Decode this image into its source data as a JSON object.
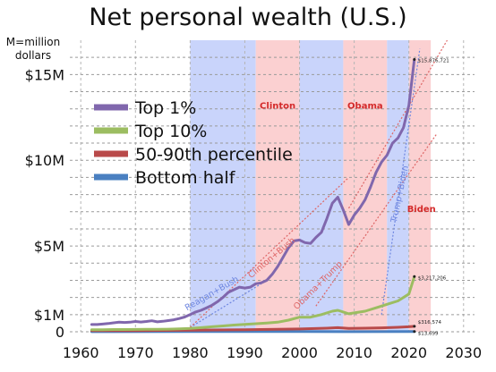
{
  "chart_data": {
    "type": "line",
    "title": "Net personal wealth (U.S.)",
    "units_note": "M=million dollars",
    "xlabel": "",
    "ylabel": "",
    "xlim": [
      1958,
      2032
    ],
    "ylim": [
      0,
      17000000
    ],
    "x_ticks": [
      1960,
      1970,
      1980,
      1990,
      2000,
      2010,
      2020,
      2030
    ],
    "y_ticks": [
      {
        "value": 0,
        "label": "0"
      },
      {
        "value": 1000000,
        "label": "$1M"
      },
      {
        "value": 5000000,
        "label": "$5M"
      },
      {
        "value": 10000000,
        "label": "$10M"
      },
      {
        "value": 15000000,
        "label": "$15M"
      }
    ],
    "grid": "dashed",
    "legend_position": "upper-left",
    "presidency_bands": [
      {
        "party": "R",
        "start": 1980,
        "end": 1992,
        "color": "#c9d4fb",
        "label": ""
      },
      {
        "party": "D",
        "start": 1992,
        "end": 2000,
        "color": "#fbd0d1",
        "label": "Clinton"
      },
      {
        "party": "R",
        "start": 2000,
        "end": 2008,
        "color": "#c9d4fb",
        "label": ""
      },
      {
        "party": "D",
        "start": 2008,
        "end": 2016,
        "color": "#fbd0d1",
        "label": "Obama"
      },
      {
        "party": "R",
        "start": 2016,
        "end": 2020,
        "color": "#c9d4fb",
        "label": ""
      },
      {
        "party": "D",
        "start": 2020,
        "end": 2024,
        "color": "#fbd0d1",
        "label": "Biden"
      }
    ],
    "series": [
      {
        "name": "Top 1%",
        "color": "#8067ad",
        "end_label": "$15,876,721",
        "x": [
          1962,
          1963,
          1964,
          1965,
          1966,
          1967,
          1968,
          1969,
          1970,
          1971,
          1972,
          1973,
          1974,
          1975,
          1976,
          1977,
          1978,
          1979,
          1980,
          1981,
          1982,
          1983,
          1984,
          1985,
          1986,
          1987,
          1988,
          1989,
          1990,
          1991,
          1992,
          1993,
          1994,
          1995,
          1996,
          1997,
          1998,
          1999,
          2000,
          2001,
          2002,
          2003,
          2004,
          2005,
          2006,
          2007,
          2008,
          2009,
          2010,
          2011,
          2012,
          2013,
          2014,
          2015,
          2016,
          2017,
          2018,
          2019,
          2020,
          2021
        ],
        "values": [
          420000,
          420000,
          450000,
          480000,
          520000,
          560000,
          540000,
          560000,
          600000,
          570000,
          600000,
          640000,
          580000,
          610000,
          650000,
          700000,
          770000,
          860000,
          1000000,
          1150000,
          1250000,
          1400000,
          1550000,
          1750000,
          2000000,
          2300000,
          2450000,
          2600000,
          2550000,
          2600000,
          2800000,
          2850000,
          3000000,
          3350000,
          3800000,
          4350000,
          4900000,
          5300000,
          5350000,
          5200000,
          5150000,
          5500000,
          5800000,
          6600000,
          7500000,
          7850000,
          7100000,
          6250000,
          6800000,
          7200000,
          7700000,
          8450000,
          9300000,
          9900000,
          10300000,
          11000000,
          11300000,
          11900000,
          13200000,
          15880000
        ]
      },
      {
        "name": "Top 10%",
        "color": "#9cbd61",
        "end_label": "$3,217,206",
        "x": [
          1962,
          1964,
          1966,
          1968,
          1970,
          1972,
          1974,
          1976,
          1978,
          1980,
          1982,
          1984,
          1986,
          1988,
          1990,
          1992,
          1994,
          1996,
          1998,
          2000,
          2002,
          2004,
          2006,
          2007,
          2008,
          2009,
          2010,
          2012,
          2014,
          2016,
          2018,
          2020,
          2021
        ],
        "values": [
          120000,
          120000,
          130000,
          130000,
          135000,
          140000,
          140000,
          150000,
          170000,
          200000,
          240000,
          290000,
          340000,
          390000,
          430000,
          470000,
          510000,
          560000,
          680000,
          850000,
          850000,
          1000000,
          1200000,
          1250000,
          1150000,
          1050000,
          1100000,
          1200000,
          1400000,
          1600000,
          1800000,
          2200000,
          3220000
        ]
      },
      {
        "name": "50-90th percentile",
        "color": "#b94a4a",
        "end_label": "$316,574",
        "x": [
          1962,
          1970,
          1980,
          1990,
          2000,
          2005,
          2007,
          2009,
          2012,
          2015,
          2018,
          2020,
          2021
        ],
        "values": [
          60000,
          70000,
          90000,
          120000,
          160000,
          210000,
          240000,
          200000,
          210000,
          230000,
          260000,
          290000,
          317000
        ]
      },
      {
        "name": "Bottom half",
        "color": "#4a80c1",
        "end_label": "$13,699",
        "x": [
          1962,
          1980,
          2000,
          2010,
          2021
        ],
        "values": [
          5000,
          8000,
          12000,
          5000,
          13700
        ]
      }
    ],
    "trendlines": [
      {
        "label": "Reagan+Bush",
        "color": "#6e86e0",
        "points": [
          [
            1980,
            250000
          ],
          [
            1993,
            2800000
          ]
        ]
      },
      {
        "label": "Clinton+Bush",
        "color": "#de6666",
        "points": [
          [
            1980,
            250000
          ],
          [
            2009,
            9000000
          ]
        ]
      },
      {
        "label": "Obama+Trump",
        "color": "#de6666",
        "points": [
          [
            2003,
            1500000
          ],
          [
            2025,
            11500000
          ]
        ]
      },
      {
        "label": "Trump+Biden",
        "color": "#6e86e0",
        "points": [
          [
            2015,
            1000000
          ],
          [
            2022,
            16500000
          ]
        ]
      },
      {
        "label": "",
        "color": "#de6666",
        "points": [
          [
            2009,
            7200000
          ],
          [
            2027,
            17000000
          ]
        ]
      }
    ],
    "annotations": [
      {
        "text": "Clinton",
        "color": "#d42a2a",
        "x": 1996,
        "y": 13000000,
        "rotation": 0
      },
      {
        "text": "Obama",
        "color": "#d42a2a",
        "x": 2012,
        "y": 13000000,
        "rotation": 0
      },
      {
        "text": "Biden",
        "color": "#d42a2a",
        "x": 2022.3,
        "y": 7000000,
        "rotation": 0
      },
      {
        "text": "Reagan+Bush",
        "color": "#6e86e0",
        "x": 1984.2,
        "y": 2100000,
        "rotation": -30
      },
      {
        "text": "Clinton+Bush",
        "color": "#de6666",
        "x": 1995.2,
        "y": 4200000,
        "rotation": -40
      },
      {
        "text": "Obama+Trump",
        "color": "#de6666",
        "x": 2003.7,
        "y": 2600000,
        "rotation": -45
      },
      {
        "text": "Trump+Biden",
        "color": "#6e86e0",
        "x": 2018.8,
        "y": 8000000,
        "rotation": -78
      }
    ]
  }
}
